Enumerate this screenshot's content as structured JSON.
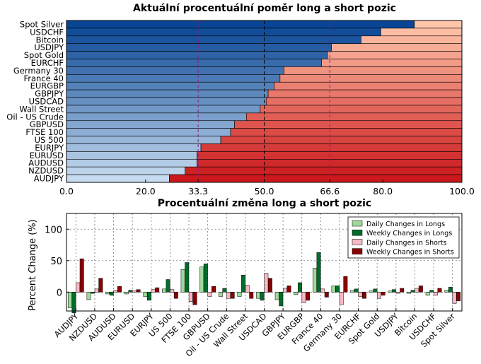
{
  "chart_data": [
    {
      "type": "bar",
      "orientation": "horizontal",
      "stacked": true,
      "title": "Aktuální procentuální poměr long a short pozic",
      "categories": [
        "Spot Silver",
        "USDCHF",
        "Bitcoin",
        "USDJPY",
        "Spot Gold",
        "EURCHF",
        "Germany 30",
        "France 40",
        "EURGBP",
        "GBPJPY",
        "USDCAD",
        "Wall Street",
        "Oil - US Crude",
        "GBPUSD",
        "FTSE 100",
        "US 500",
        "EURJPY",
        "EURUSD",
        "AUDUSD",
        "NZDUSD",
        "AUDJPY"
      ],
      "series": [
        {
          "values": [
            88.0,
            79.5,
            74.5,
            67.0,
            66.0,
            64.5,
            55.0,
            54.0,
            52.5,
            51.0,
            50.5,
            49.0,
            45.5,
            42.5,
            41.5,
            39.0,
            34.0,
            33.0,
            33.0,
            30.0,
            26.0
          ]
        }
      ],
      "xlim": [
        0,
        100
      ],
      "xticks": [
        "0.0",
        "20.0",
        "33.3",
        "50.0",
        "66.6",
        "80.0",
        "100.0"
      ],
      "highlight_ticks": [
        "33.3",
        "66.6"
      ],
      "grid": true
    },
    {
      "type": "bar",
      "title": "Procentuální změna long a short pozic",
      "ylabel": "Percent Change (%)",
      "ylim": [
        -30,
        125
      ],
      "yticks": [
        "0",
        "50",
        "100"
      ],
      "legend_position": "top-right",
      "grid": true,
      "categories": [
        "AUDJPY",
        "NZDUSD",
        "AUDUSD",
        "EURUSD",
        "EURJPY",
        "US 500",
        "FTSE 100",
        "GBPUSD",
        "Oil - US Crude",
        "Wall Street",
        "USDCAD",
        "GBPJPY",
        "EURGBP",
        "France 40",
        "Germany 30",
        "EURCHF",
        "Spot Gold",
        "USDJPY",
        "Bitcoin",
        "USDCHF",
        "Spot Silver"
      ],
      "series": [
        {
          "name": "Daily Changes in Longs",
          "values": [
            -25,
            -12,
            -3,
            -3,
            -7,
            5,
            36,
            40,
            -7,
            -7,
            -10,
            -12,
            -4,
            38,
            10,
            3,
            2,
            2,
            -2,
            -5,
            3
          ]
        },
        {
          "name": "Weekly Changes in Longs",
          "values": [
            -33,
            -2,
            -5,
            3,
            -13,
            20,
            47,
            45,
            6,
            27,
            -13,
            -22,
            15,
            63,
            10,
            5,
            5,
            4,
            3,
            3,
            8
          ]
        },
        {
          "name": "Daily Changes in Shorts",
          "values": [
            15,
            5,
            3,
            2,
            4,
            4,
            -15,
            -7,
            -10,
            11,
            30,
            6,
            -17,
            5,
            -20,
            -7,
            -10,
            -2,
            6,
            -5,
            -18
          ]
        },
        {
          "name": "Weekly Changes in Shorts",
          "values": [
            53,
            22,
            9,
            4,
            7,
            -10,
            -20,
            9,
            -10,
            -10,
            22,
            10,
            -13,
            -8,
            25,
            -10,
            -5,
            6,
            10,
            6,
            -14
          ]
        }
      ]
    }
  ],
  "colors": {
    "daily_longs": "#a1d99b",
    "weekly_longs": "#006d2c",
    "daily_shorts": "#f7b9c4",
    "weekly_shorts": "#8b0000",
    "highlight_tick": "#8b1a8b"
  }
}
